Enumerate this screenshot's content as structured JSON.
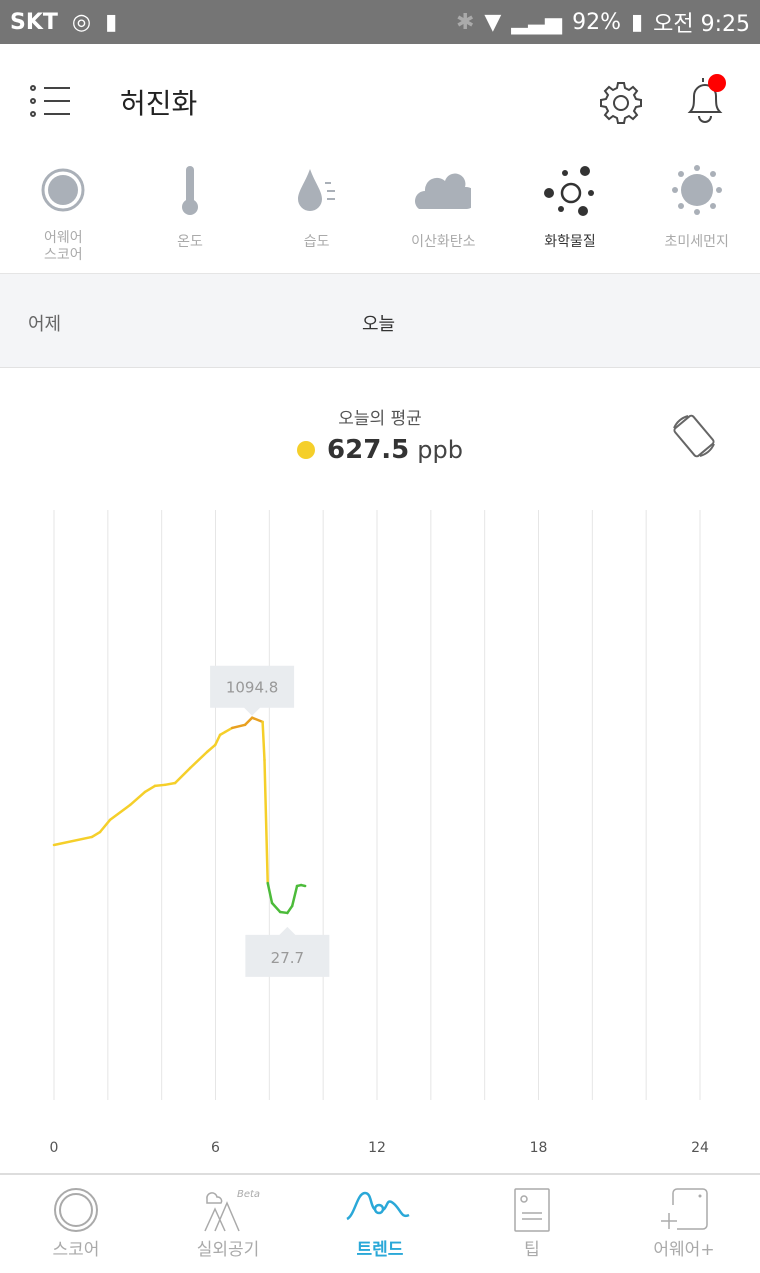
{
  "status_bar": {
    "carrier": "SKT",
    "battery": "92%",
    "time": "오전 9:25"
  },
  "header": {
    "title": "허진화",
    "menu_icon": "list-menu-icon",
    "settings_icon": "gear-icon",
    "notification_icon": "bell-icon",
    "notification_dot_color": "#ff0000"
  },
  "categories": [
    {
      "label": "어웨어\n스코어",
      "icon": "score-circle-icon",
      "active": false
    },
    {
      "label": "온도",
      "icon": "thermometer-icon",
      "active": false
    },
    {
      "label": "습도",
      "icon": "humidity-drop-icon",
      "active": false
    },
    {
      "label": "이산화탄소",
      "icon": "cloud-icon",
      "active": false
    },
    {
      "label": "화학물질",
      "icon": "chemical-icon",
      "active": true
    },
    {
      "label": "초미세먼지",
      "icon": "dust-icon",
      "active": false
    }
  ],
  "days": {
    "yesterday": "어제",
    "today": "오늘"
  },
  "average": {
    "label": "오늘의 평균",
    "value": "627.5",
    "unit": "ppb",
    "dot_color": "#f5cf2a"
  },
  "chart_data": {
    "type": "line",
    "x_ticks": [
      "0",
      "6",
      "12",
      "18",
      "24"
    ],
    "xlim": [
      0,
      24
    ],
    "ylim": [
      0,
      2230
    ],
    "grid": "vertical every 2 hours",
    "max_label": "1094.8",
    "min_label": "27.7",
    "x": [
      0,
      1.41,
      1.71,
      2.08,
      2.83,
      3.38,
      3.75,
      4.13,
      4.5,
      5.06,
      5.69,
      5.99,
      6.17,
      6.36,
      6.62,
      7.1,
      7.36,
      7.75,
      7.82,
      7.94,
      8.1,
      8.4,
      8.67,
      8.85,
      9.03,
      9.18,
      9.33
    ],
    "y": [
      399,
      443,
      470,
      536,
      618,
      689,
      722,
      728,
      738,
      820,
      908,
      946,
      1001,
      1017,
      1039,
      1056,
      1094.8,
      1072,
      864,
      191,
      82,
      33,
      27.7,
      66,
      175,
      180,
      175
    ],
    "colors": {
      "high": "#e8a020",
      "mid": "#f5cf2a",
      "low": "#4cbb3a"
    }
  },
  "tabbar": [
    {
      "label": "스코어",
      "icon": "score-ring-icon",
      "active": false
    },
    {
      "label": "실외공기",
      "icon": "mountain-cloud-icon",
      "badge": "Beta",
      "active": false
    },
    {
      "label": "트렌드",
      "icon": "trend-wave-icon",
      "active": true
    },
    {
      "label": "팁",
      "icon": "tip-document-icon",
      "active": false
    },
    {
      "label": "어웨어+",
      "icon": "add-device-icon",
      "active": false
    }
  ]
}
